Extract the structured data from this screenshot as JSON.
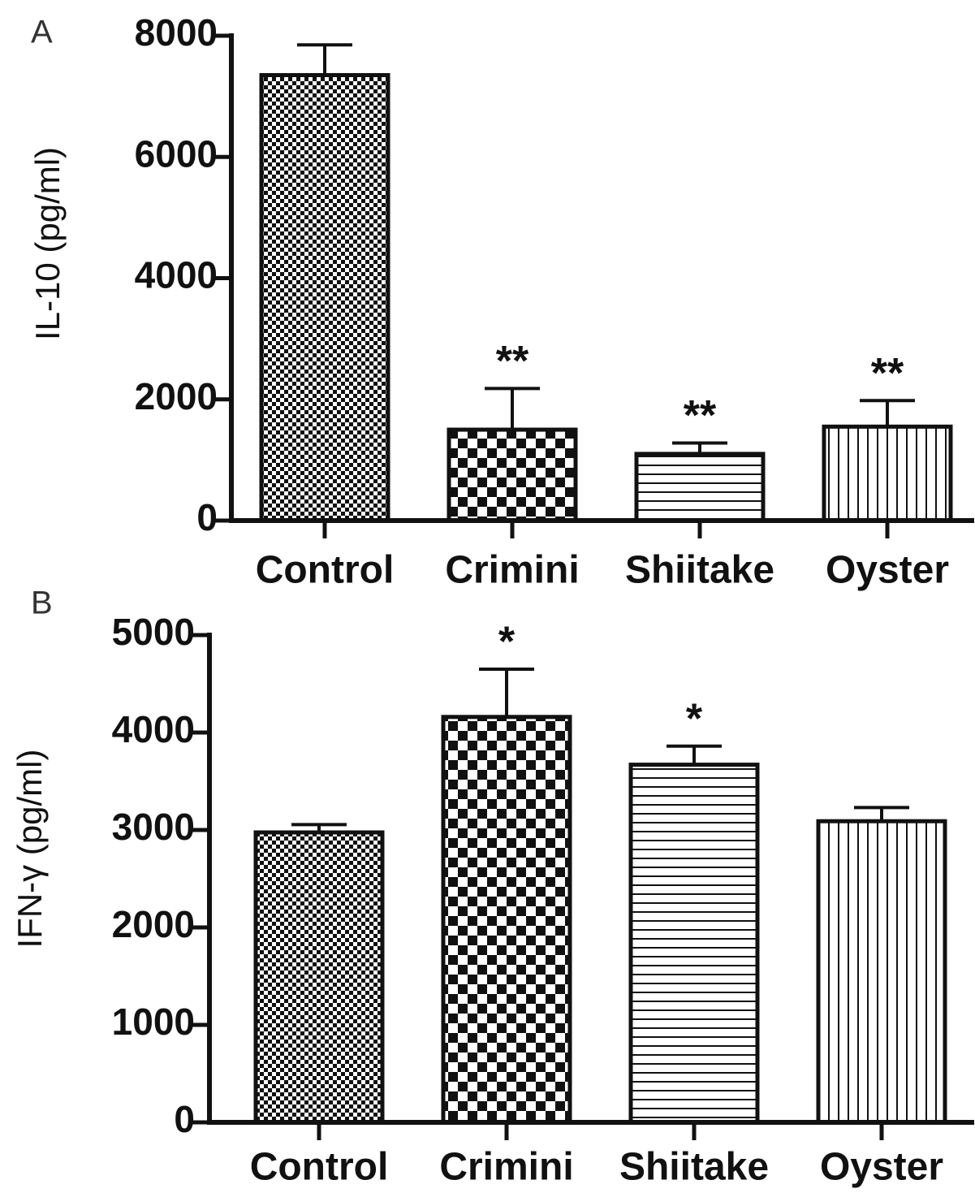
{
  "chart_data": [
    {
      "type": "bar",
      "panel_label": "A",
      "ylabel": "IL-10 (pg/ml)",
      "categories": [
        "Control",
        "Crimini",
        "Shiitake",
        "Oyster"
      ],
      "values": [
        7350,
        1500,
        1100,
        1550
      ],
      "errors": [
        500,
        680,
        180,
        430
      ],
      "annotations": [
        null,
        "**",
        "**",
        "**"
      ],
      "patterns": [
        "fine-checker",
        "checker",
        "horizontal",
        "vertical"
      ],
      "color": "#111111",
      "ylim": [
        0,
        8000
      ],
      "yticks": [
        0,
        2000,
        4000,
        6000,
        8000
      ]
    },
    {
      "type": "bar",
      "panel_label": "B",
      "ylabel": "IFN-γ (pg/ml)",
      "categories": [
        "Control",
        "Crimini",
        "Shiitake",
        "Oyster"
      ],
      "values": [
        2975,
        4160,
        3670,
        3090
      ],
      "errors": [
        80,
        490,
        190,
        140
      ],
      "annotations": [
        null,
        "*",
        "*",
        null
      ],
      "patterns": [
        "fine-checker",
        "checker",
        "horizontal",
        "vertical"
      ],
      "color": "#111111",
      "ylim": [
        0,
        5000
      ],
      "yticks": [
        0,
        1000,
        2000,
        3000,
        4000,
        5000
      ]
    }
  ]
}
